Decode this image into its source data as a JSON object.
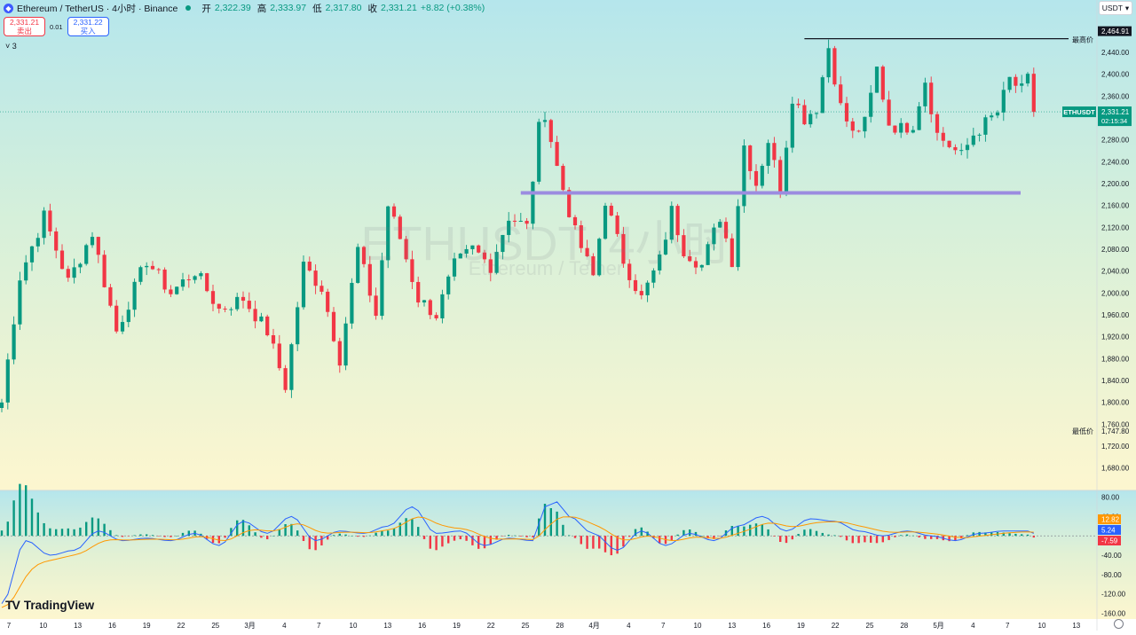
{
  "header": {
    "symbol_icon": "ethereum-icon",
    "title": "Ethereum / TetherUS · 4小时 · Binance",
    "open_label": "开",
    "open_value": "2,322.39",
    "high_label": "高",
    "high_value": "2,333.97",
    "low_label": "低",
    "low_value": "2,317.80",
    "close_label": "收",
    "close_value": "2,331.21",
    "change_value": "+8.82 (+0.38%)"
  },
  "trade": {
    "sell_price": "2,331.21",
    "sell_label": "卖出",
    "spread": "0.01",
    "buy_price": "2,331.22",
    "buy_label": "买入"
  },
  "indicators_toggle": "3",
  "currency": "USDT",
  "watermark": {
    "line1": "ETHUSDT, 4小时",
    "line2": "Ethereum / Tether"
  },
  "logo": {
    "text": "TradingView"
  },
  "colors": {
    "up": "#089981",
    "down": "#f23645",
    "support": "#9b8ce0",
    "macd": "#2962ff",
    "signal": "#ff9800"
  },
  "chart_data": [
    {
      "type": "candlestick",
      "title": "ETHUSDT, 4小时",
      "x_ticks": [
        "7",
        "10",
        "13",
        "16",
        "19",
        "22",
        "25",
        "3月",
        "4",
        "7",
        "10",
        "13",
        "16",
        "19",
        "22",
        "25",
        "28",
        "4月",
        "4",
        "7",
        "10",
        "13",
        "16",
        "19",
        "22",
        "25",
        "28",
        "5月",
        "4",
        "7",
        "10",
        "13"
      ],
      "y_ticks": [
        "2,480.00",
        "2,440.00",
        "2,400.00",
        "2,360.00",
        "2,320.00",
        "2,280.00",
        "2,240.00",
        "2,200.00",
        "2,160.00",
        "2,120.00",
        "2,080.00",
        "2,040.00",
        "2,000.00",
        "1,960.00",
        "1,920.00",
        "1,880.00",
        "1,840.00",
        "1,800.00",
        "1,760.00",
        "1,720.00",
        "1,680.00"
      ],
      "ylim": [
        1660,
        2500
      ],
      "anchors": [
        [
          0,
          1800
        ],
        [
          3,
          2030
        ],
        [
          7,
          2140
        ],
        [
          11,
          2020
        ],
        [
          15,
          2110
        ],
        [
          19,
          1930
        ],
        [
          24,
          2060
        ],
        [
          28,
          2000
        ],
        [
          32,
          2040
        ],
        [
          36,
          1970
        ],
        [
          40,
          1990
        ],
        [
          44,
          1930
        ],
        [
          47,
          1830
        ],
        [
          50,
          2050
        ],
        [
          53,
          2010
        ],
        [
          56,
          1880
        ],
        [
          59,
          2080
        ],
        [
          62,
          1960
        ],
        [
          64,
          2160
        ],
        [
          66,
          2100
        ],
        [
          69,
          1990
        ],
        [
          72,
          1960
        ],
        [
          75,
          2050
        ],
        [
          78,
          2080
        ],
        [
          81,
          2050
        ],
        [
          84,
          2140
        ],
        [
          87,
          2120
        ],
        [
          89,
          2300
        ],
        [
          90,
          2330
        ],
        [
          92,
          2230
        ],
        [
          95,
          2110
        ],
        [
          98,
          2030
        ],
        [
          100,
          2170
        ],
        [
          103,
          2060
        ],
        [
          106,
          1990
        ],
        [
          109,
          2060
        ],
        [
          111,
          2150
        ],
        [
          113,
          2080
        ],
        [
          116,
          2050
        ],
        [
          119,
          2140
        ],
        [
          121,
          2060
        ],
        [
          123,
          2270
        ],
        [
          125,
          2200
        ],
        [
          127,
          2280
        ],
        [
          129,
          2190
        ],
        [
          131,
          2360
        ],
        [
          133,
          2320
        ],
        [
          135,
          2340
        ],
        [
          137,
          2450
        ],
        [
          139,
          2340
        ],
        [
          141,
          2290
        ],
        [
          143,
          2310
        ],
        [
          145,
          2410
        ],
        [
          147,
          2310
        ],
        [
          149,
          2300
        ],
        [
          151,
          2310
        ],
        [
          153,
          2390
        ],
        [
          155,
          2290
        ],
        [
          157,
          2270
        ],
        [
          159,
          2250
        ],
        [
          161,
          2290
        ],
        [
          163,
          2310
        ],
        [
          165,
          2330
        ],
        [
          167,
          2390
        ],
        [
          169,
          2370
        ],
        [
          170,
          2390
        ],
        [
          171,
          2331
        ]
      ],
      "high": "2,464.91",
      "low": "1,747.80",
      "last": "2,331.21",
      "support_level": 2183,
      "labels": {
        "high": "最高价",
        "low": "最低价",
        "symbol": "ETHUSDT",
        "price": "2,331.21",
        "countdown": "02:15:34"
      }
    },
    {
      "type": "macd",
      "y_ticks": [
        "80.00",
        "40.00",
        "-40.00",
        "-80.00",
        "-120.00",
        "-160.00"
      ],
      "ylim": [
        -170,
        90
      ],
      "values": {
        "signal": "12.82",
        "macd": "5.24",
        "histogram": "-7.59"
      },
      "macd_anchors": [
        [
          0,
          -140
        ],
        [
          4,
          -10
        ],
        [
          8,
          -40
        ],
        [
          12,
          -30
        ],
        [
          16,
          10
        ],
        [
          20,
          -10
        ],
        [
          24,
          -5
        ],
        [
          28,
          -10
        ],
        [
          32,
          5
        ],
        [
          36,
          -20
        ],
        [
          40,
          30
        ],
        [
          44,
          5
        ],
        [
          48,
          40
        ],
        [
          52,
          -10
        ],
        [
          56,
          10
        ],
        [
          60,
          5
        ],
        [
          64,
          20
        ],
        [
          68,
          60
        ],
        [
          72,
          5
        ],
        [
          76,
          10
        ],
        [
          80,
          -20
        ],
        [
          84,
          -5
        ],
        [
          88,
          -10
        ],
        [
          90,
          60
        ],
        [
          92,
          70
        ],
        [
          94,
          40
        ],
        [
          98,
          5
        ],
        [
          102,
          -30
        ],
        [
          106,
          10
        ],
        [
          110,
          -20
        ],
        [
          114,
          5
        ],
        [
          118,
          -10
        ],
        [
          122,
          20
        ],
        [
          126,
          40
        ],
        [
          130,
          10
        ],
        [
          134,
          35
        ],
        [
          138,
          30
        ],
        [
          142,
          10
        ],
        [
          146,
          0
        ],
        [
          150,
          10
        ],
        [
          154,
          0
        ],
        [
          158,
          -10
        ],
        [
          162,
          5
        ],
        [
          166,
          10
        ],
        [
          170,
          10
        ],
        [
          171,
          5
        ]
      ]
    }
  ]
}
